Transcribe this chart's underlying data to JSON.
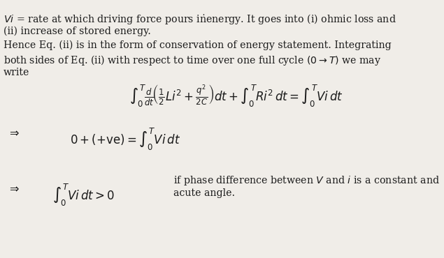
{
  "background_color": "#f0ede8",
  "text_color": "#1a1a1a",
  "figsize": [
    6.35,
    3.7
  ],
  "dpi": 100,
  "line1_a": "$Vi$",
  "line1_b": " = rate at which driving force pours in energy. It goes into (i) ohmic loss and",
  "line2": "(ii) increase of stored energy.",
  "line3": "Hence Eq. (ii) is in the form of conservation of energy statement. Integrating",
  "line4": "both sides of Eq. (ii) with respect to time over one full cycle $(0 \\rightarrow T)$ we may",
  "line5": "write",
  "fs_body": 10.2,
  "fs_eq": 10.5
}
